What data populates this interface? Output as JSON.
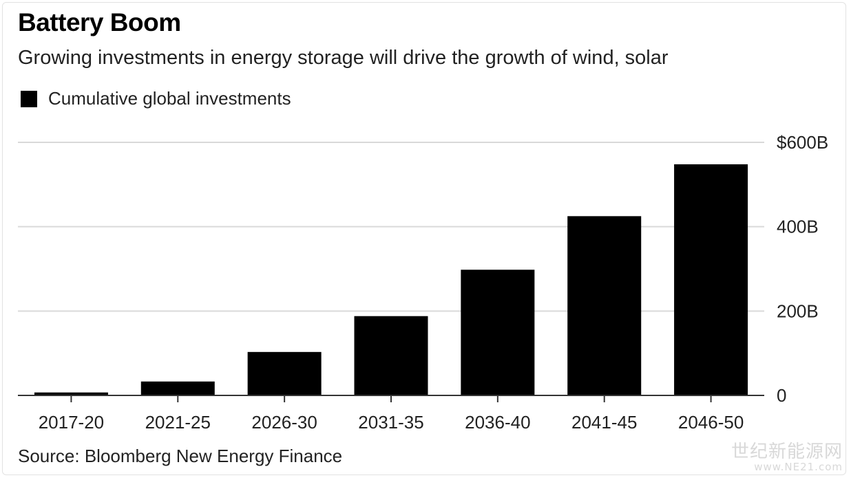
{
  "title": "Battery Boom",
  "subtitle": "Growing investments in energy storage will drive the growth of wind, solar",
  "legend": {
    "label": "Cumulative global investments",
    "color": "#000000"
  },
  "source": "Source: Bloomberg New Energy Finance",
  "watermark": {
    "line1": "世纪新能源网",
    "line2": "www.NE21.com"
  },
  "chart_data": {
    "type": "bar",
    "categories": [
      "2017-20",
      "2021-25",
      "2026-30",
      "2031-35",
      "2036-40",
      "2041-45",
      "2046-50"
    ],
    "series": [
      {
        "name": "Cumulative global investments",
        "values": [
          7,
          33,
          103,
          188,
          298,
          425,
          548
        ]
      }
    ],
    "ylim": [
      0,
      600
    ],
    "yticks": [
      0,
      200,
      400,
      600
    ],
    "ytick_labels": [
      "0",
      "200B",
      "400B",
      "$600B"
    ],
    "grid": true,
    "legend_position": "top-left",
    "bar_color": "#000000",
    "grid_color": "#d9d9d9"
  }
}
